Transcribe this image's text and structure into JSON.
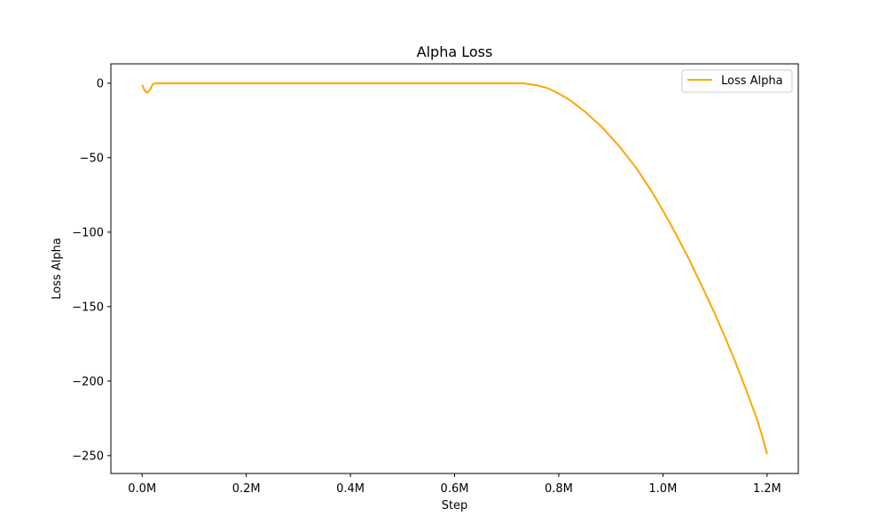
{
  "chart_data": {
    "type": "line",
    "title": "Alpha Loss",
    "xlabel": "Step",
    "ylabel": "Loss Alpha",
    "xlim": [
      -60000,
      1260000
    ],
    "ylim": [
      -262,
      13
    ],
    "x_ticks": [
      0,
      200000,
      400000,
      600000,
      800000,
      1000000,
      1200000
    ],
    "x_tick_labels": [
      "0.0M",
      "0.2M",
      "0.4M",
      "0.6M",
      "0.8M",
      "1.0M",
      "1.2M"
    ],
    "y_ticks": [
      0,
      -50,
      -100,
      -150,
      -200,
      -250
    ],
    "y_tick_labels": [
      "0",
      "−50",
      "−100",
      "−150",
      "−200",
      "−250"
    ],
    "grid": false,
    "legend_position": "top-right",
    "series": [
      {
        "name": "Loss Alpha",
        "color": "#ffa500",
        "x": [
          0,
          5000,
          10000,
          15000,
          20000,
          25000,
          30000,
          50000,
          100000,
          200000,
          300000,
          400000,
          500000,
          600000,
          700000,
          730000,
          760000,
          780000,
          800000,
          820000,
          850000,
          880000,
          900000,
          920000,
          950000,
          980000,
          1000000,
          1020000,
          1050000,
          1080000,
          1100000,
          1120000,
          1140000,
          1160000,
          1180000,
          1190000,
          1200000
        ],
        "y": [
          -1,
          -5,
          -6.5,
          -4.5,
          -1,
          0,
          0,
          0,
          0,
          0,
          0,
          0,
          0,
          0,
          0,
          0,
          -1.5,
          -3.5,
          -7,
          -11,
          -19,
          -28.5,
          -36,
          -44,
          -57.5,
          -73.5,
          -85.5,
          -98,
          -118,
          -140,
          -155,
          -171,
          -188,
          -206,
          -225,
          -236,
          -249
        ]
      }
    ]
  }
}
